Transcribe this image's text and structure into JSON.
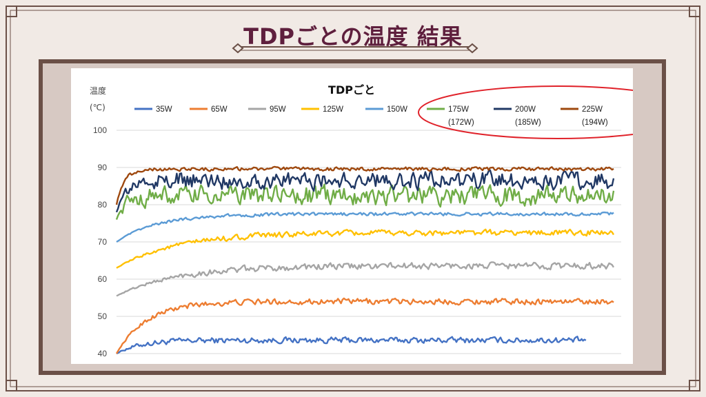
{
  "slide": {
    "title": "TDPごとの温度 結果",
    "colors": {
      "background": "#f1eae5",
      "frame": "#6b5047",
      "title": "#5e1f3d",
      "highlight": "#e0222a"
    }
  },
  "chart_data": {
    "type": "line",
    "title": "TDPごと",
    "ylabel": [
      "温度",
      "(℃)"
    ],
    "xlabel": "",
    "ylim": [
      40,
      100
    ],
    "yticks": [
      40,
      50,
      60,
      70,
      80,
      90,
      100
    ],
    "grid": "horizontal",
    "legend_position": "top",
    "legend_highlight": [
      "175W",
      "200W",
      "225W"
    ],
    "series": [
      {
        "name": "35W",
        "note": "",
        "color": "#4472c4",
        "start": 40,
        "plateau": 43.6,
        "noise": 0.7,
        "rise": 0.05,
        "end": 0.93
      },
      {
        "name": "65W",
        "note": "",
        "color": "#ed7d31",
        "start": 40,
        "plateau": 54.0,
        "noise": 0.7,
        "rise": 0.06,
        "end": 0.985
      },
      {
        "name": "95W",
        "note": "",
        "color": "#a5a5a5",
        "start": 55.5,
        "plateau": 63.6,
        "noise": 0.8,
        "rise": 0.12,
        "end": 0.985
      },
      {
        "name": "125W",
        "note": "",
        "color": "#ffc000",
        "start": 63,
        "plateau": 72.5,
        "noise": 0.7,
        "rise": 0.12,
        "end": 0.985
      },
      {
        "name": "150W",
        "note": "",
        "color": "#5b9bd5",
        "start": 70,
        "plateau": 77.5,
        "noise": 0.4,
        "rise": 0.08,
        "end": 0.985
      },
      {
        "name": "175W",
        "note": "(172W)",
        "color": "#70ad47",
        "start": 76,
        "plateau": 82.5,
        "noise": 2.3,
        "rise": 0.02,
        "end": 0.985
      },
      {
        "name": "200W",
        "note": "(185W)",
        "color": "#203864",
        "start": 78,
        "plateau": 86.5,
        "noise": 2.1,
        "rise": 0.02,
        "end": 0.985
      },
      {
        "name": "225W",
        "note": "(194W)",
        "color": "#9e480e",
        "start": 80,
        "plateau": 89.6,
        "noise": 0.45,
        "rise": 0.015,
        "end": 0.985
      }
    ]
  }
}
